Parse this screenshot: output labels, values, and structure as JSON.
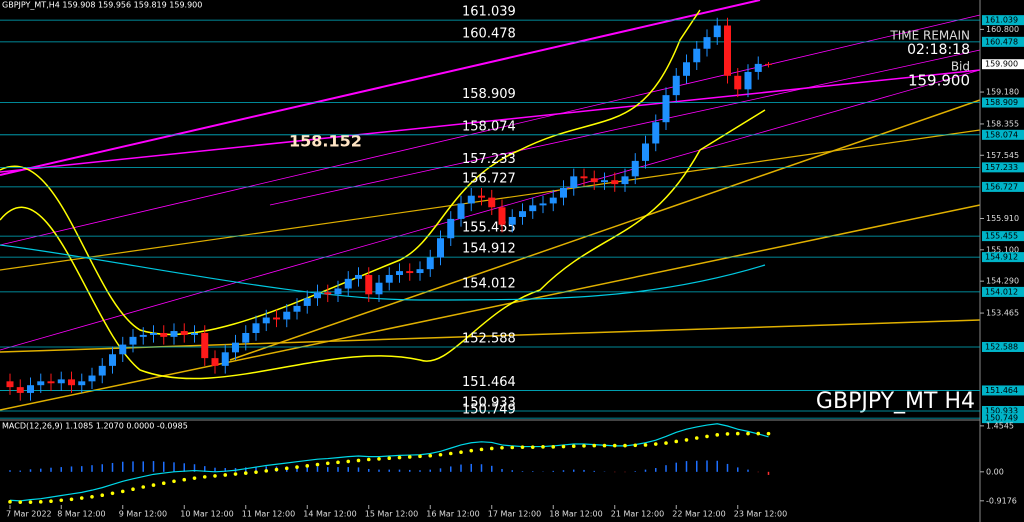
{
  "chart_data": [
    {
      "type": "candlestick",
      "title": "GBPJPY_MT,H4  159.908 159.956 159.819 159.900",
      "watermark": "GBPJPY_MT H4",
      "annotation": "158.152",
      "info": [
        "TIME REMAIN",
        "02:18:18",
        "Bid",
        "159.900"
      ],
      "categories": [
        "7 Mar 2022",
        null,
        null,
        null,
        null,
        "8 Mar 12:00",
        null,
        null,
        null,
        null,
        null,
        "9 Mar 12:00",
        null,
        null,
        null,
        null,
        null,
        "10 Mar 12:00",
        null,
        null,
        null,
        null,
        null,
        "11 Mar 12:00",
        null,
        null,
        null,
        null,
        null,
        "14 Mar 12:00",
        null,
        null,
        null,
        null,
        null,
        "15 Mar 12:00",
        null,
        null,
        null,
        null,
        null,
        "16 Mar 12:00",
        null,
        null,
        null,
        null,
        null,
        "17 Mar 12:00",
        null,
        null,
        null,
        null,
        null,
        "18 Mar 12:00",
        null,
        null,
        null,
        null,
        null,
        "21 Mar 12:00",
        null,
        null,
        null,
        null,
        null,
        "22 Mar 12:00",
        null,
        null,
        null,
        null,
        null,
        "23 Mar 12:00",
        null,
        null,
        null
      ],
      "open": [
        151.7,
        151.55,
        151.4,
        151.6,
        151.7,
        151.65,
        151.75,
        151.6,
        151.7,
        151.85,
        152.1,
        152.4,
        152.65,
        152.85,
        152.9,
        152.95,
        152.85,
        153.0,
        152.9,
        152.95,
        152.3,
        152.1,
        152.45,
        152.7,
        152.95,
        153.2,
        153.35,
        153.3,
        153.5,
        153.65,
        153.85,
        154.0,
        153.95,
        154.1,
        154.35,
        154.45,
        153.95,
        154.25,
        154.45,
        154.55,
        154.5,
        154.6,
        154.9,
        155.4,
        155.9,
        156.3,
        156.5,
        156.45,
        156.2,
        155.75,
        155.95,
        156.1,
        156.25,
        156.3,
        156.45,
        156.7,
        157.0,
        156.95,
        156.85,
        156.9,
        156.8,
        157.0,
        157.4,
        157.85,
        158.4,
        159.1,
        159.6,
        159.95,
        160.3,
        160.6,
        160.9,
        159.6,
        159.25,
        159.7,
        159.908
      ],
      "high": [
        151.9,
        151.75,
        151.8,
        151.9,
        151.9,
        151.95,
        151.95,
        151.9,
        152.05,
        152.3,
        152.6,
        152.85,
        153.05,
        153.1,
        153.15,
        153.15,
        153.2,
        153.2,
        153.15,
        153.15,
        152.5,
        152.65,
        152.9,
        153.15,
        153.4,
        153.55,
        153.55,
        153.7,
        153.85,
        154.05,
        154.2,
        154.2,
        154.3,
        154.55,
        154.65,
        154.65,
        154.45,
        154.65,
        154.75,
        154.75,
        154.8,
        155.1,
        155.6,
        156.1,
        156.5,
        156.7,
        156.7,
        156.65,
        156.4,
        156.15,
        156.3,
        156.45,
        156.5,
        156.65,
        156.9,
        157.2,
        157.2,
        157.15,
        157.1,
        157.1,
        157.2,
        157.6,
        158.05,
        158.6,
        159.3,
        159.8,
        160.15,
        160.5,
        160.8,
        161.1,
        161.1,
        159.8,
        159.9,
        160.1,
        159.956
      ],
      "low": [
        151.35,
        151.2,
        151.2,
        151.4,
        151.45,
        151.45,
        151.4,
        151.4,
        151.5,
        151.65,
        151.9,
        152.2,
        152.45,
        152.65,
        152.7,
        152.65,
        152.65,
        152.7,
        152.7,
        152.1,
        151.9,
        151.9,
        152.25,
        152.5,
        152.75,
        153.0,
        153.1,
        153.1,
        153.3,
        153.45,
        153.65,
        153.75,
        153.75,
        153.9,
        154.15,
        153.75,
        153.75,
        154.05,
        154.25,
        154.3,
        154.3,
        154.4,
        154.7,
        155.2,
        155.7,
        156.1,
        156.25,
        156.0,
        155.55,
        155.55,
        155.75,
        155.9,
        156.05,
        156.1,
        156.25,
        156.5,
        156.75,
        156.65,
        156.65,
        156.6,
        156.6,
        156.8,
        157.2,
        157.65,
        158.2,
        158.9,
        159.4,
        159.75,
        160.1,
        160.4,
        159.4,
        159.05,
        159.05,
        159.5,
        159.819
      ],
      "close": [
        151.55,
        151.4,
        151.6,
        151.7,
        151.65,
        151.75,
        151.6,
        151.7,
        151.85,
        152.1,
        152.4,
        152.65,
        152.85,
        152.9,
        152.95,
        152.85,
        153.0,
        152.9,
        152.95,
        152.3,
        152.1,
        152.45,
        152.7,
        152.95,
        153.2,
        153.35,
        153.3,
        153.5,
        153.65,
        153.85,
        154.0,
        153.95,
        154.1,
        154.35,
        154.45,
        153.95,
        154.25,
        154.45,
        154.55,
        154.5,
        154.6,
        154.9,
        155.4,
        155.9,
        156.3,
        156.5,
        156.45,
        156.2,
        155.75,
        155.95,
        156.1,
        156.25,
        156.3,
        156.45,
        156.7,
        157.0,
        156.95,
        156.85,
        156.9,
        156.8,
        157.0,
        157.4,
        157.85,
        158.4,
        159.1,
        159.6,
        159.95,
        160.3,
        160.6,
        160.9,
        159.6,
        159.25,
        159.7,
        159.908,
        159.9
      ],
      "colors": {
        "up": "#1e90ff",
        "down": "#ff1a1a",
        "level": "#00b4c8"
      },
      "ylim": [
        150.7,
        161.56
      ],
      "yticks": [
        {
          "value": 160.8,
          "label": "160.800"
        },
        {
          "value": 159.18,
          "label": "159.180"
        },
        158.355,
        157.545,
        {
          "value": 155.91,
          "label": "155.910"
        },
        {
          "value": 155.1,
          "label": "155.100"
        },
        {
          "value": 154.29,
          "label": "154.290"
        },
        153.465
      ],
      "levels": [
        161.039,
        160.478,
        158.909,
        158.074,
        157.233,
        156.727,
        155.455,
        154.912,
        154.012,
        152.588,
        151.464,
        150.933,
        150.749
      ]
    },
    {
      "type": "macd",
      "title": "MACD(12,26,9) 1.1085 1.2070 0.0000 -0.0985",
      "ylim": [
        -1.05,
        1.64
      ],
      "yticks": [
        1.4545,
        {
          "value": 0,
          "label": "0.00"
        },
        -0.9176
      ],
      "series": [
        {
          "color": "#1e6fff",
          "style": "bars",
          "values": [
            0.05,
            0.04,
            0.08,
            0.1,
            0.13,
            0.15,
            0.17,
            0.18,
            0.21,
            0.24,
            0.28,
            0.32,
            0.33,
            0.33,
            0.34,
            0.32,
            0.3,
            0.27,
            0.24,
            0.18,
            0.13,
            0.12,
            0.12,
            0.14,
            0.16,
            0.17,
            0.17,
            0.17,
            0.17,
            0.17,
            0.17,
            0.15,
            0.15,
            0.15,
            0.14,
            0.09,
            0.07,
            0.07,
            0.07,
            0.06,
            0.05,
            0.07,
            0.11,
            0.17,
            0.23,
            0.25,
            0.24,
            0.19,
            0.09,
            0.05,
            0.02,
            0.02,
            0.01,
            0.03,
            0.05,
            0.07,
            0.06,
            0.03,
            0.01,
            -0.01,
            -0.01,
            0.02,
            0.07,
            0.12,
            0.21,
            0.29,
            0.34,
            0.35,
            0.36,
            0.35,
            0.25,
            0.14,
            0.07,
            -0.01,
            -0.0985
          ]
        },
        {
          "color": "#00d8e8",
          "style": "line",
          "values": [
            -0.9,
            -0.92,
            -0.88,
            -0.85,
            -0.8,
            -0.75,
            -0.7,
            -0.65,
            -0.58,
            -0.5,
            -0.4,
            -0.3,
            -0.22,
            -0.15,
            -0.08,
            -0.04,
            0.0,
            0.02,
            0.04,
            0.02,
            0.0,
            0.02,
            0.05,
            0.1,
            0.15,
            0.2,
            0.24,
            0.28,
            0.32,
            0.36,
            0.4,
            0.42,
            0.45,
            0.48,
            0.5,
            0.48,
            0.48,
            0.5,
            0.52,
            0.53,
            0.54,
            0.58,
            0.65,
            0.75,
            0.85,
            0.92,
            0.95,
            0.93,
            0.85,
            0.82,
            0.8,
            0.8,
            0.8,
            0.82,
            0.85,
            0.88,
            0.88,
            0.86,
            0.84,
            0.82,
            0.82,
            0.86,
            0.92,
            1.0,
            1.12,
            1.25,
            1.35,
            1.42,
            1.48,
            1.52,
            1.45,
            1.35,
            1.28,
            1.2,
            1.1085
          ]
        },
        {
          "color": "#ffff00",
          "style": "dots",
          "values": [
            -0.95,
            -0.96,
            -0.96,
            -0.95,
            -0.93,
            -0.9,
            -0.87,
            -0.83,
            -0.79,
            -0.74,
            -0.68,
            -0.62,
            -0.55,
            -0.48,
            -0.42,
            -0.36,
            -0.3,
            -0.25,
            -0.2,
            -0.16,
            -0.13,
            -0.1,
            -0.07,
            -0.04,
            -0.01,
            0.03,
            0.07,
            0.11,
            0.15,
            0.19,
            0.23,
            0.27,
            0.3,
            0.33,
            0.36,
            0.39,
            0.41,
            0.43,
            0.45,
            0.47,
            0.49,
            0.51,
            0.54,
            0.58,
            0.62,
            0.67,
            0.71,
            0.74,
            0.76,
            0.77,
            0.78,
            0.78,
            0.79,
            0.79,
            0.8,
            0.81,
            0.82,
            0.83,
            0.83,
            0.83,
            0.83,
            0.84,
            0.85,
            0.88,
            0.91,
            0.96,
            1.01,
            1.07,
            1.12,
            1.17,
            1.2,
            1.21,
            1.21,
            1.21,
            1.207
          ]
        }
      ]
    }
  ]
}
